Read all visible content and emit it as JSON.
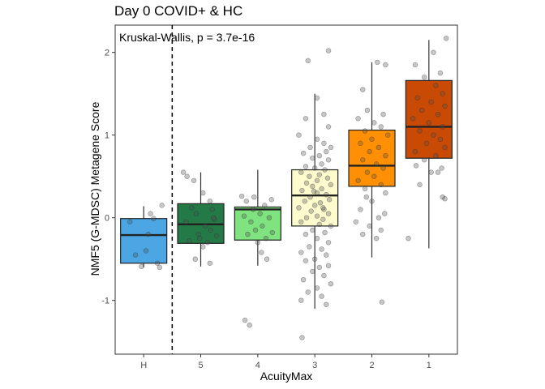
{
  "chart_data": {
    "type": "box",
    "title": "Day 0 COVID+ & HC",
    "xlabel": "AcuityMax",
    "ylabel": "NMF5 (G-MDSC) Metagene Score",
    "annotation": "Kruskal-Wallis, p = 3.7e-16",
    "categories": [
      "H",
      "5",
      "4",
      "3",
      "2",
      "1"
    ],
    "y_ticks": [
      -1,
      0,
      1,
      2
    ],
    "ylim": [
      -1.65,
      2.33
    ],
    "reference_line": {
      "type": "vertical",
      "style": "dashed",
      "between": [
        "H",
        "5"
      ]
    },
    "grid": false,
    "legend": "none",
    "boxes": [
      {
        "category": "H",
        "color": "#4BA6E3",
        "whisker_low": -0.6,
        "q1": -0.55,
        "median": -0.21,
        "q3": -0.01,
        "whisker_high": 0.14
      },
      {
        "category": "5",
        "color": "#237A47",
        "whisker_low": -0.59,
        "q1": -0.31,
        "median": -0.08,
        "q3": 0.17,
        "whisker_high": 0.55
      },
      {
        "category": "4",
        "color": "#7FE37F",
        "whisker_low": -0.58,
        "q1": -0.27,
        "median": 0.1,
        "q3": 0.13,
        "whisker_high": 0.58
      },
      {
        "category": "3",
        "color": "#FEFBCF",
        "whisker_low": -1.1,
        "q1": -0.1,
        "median": 0.27,
        "q3": 0.58,
        "whisker_high": 1.5
      },
      {
        "category": "2",
        "color": "#FF9005",
        "whisker_low": -0.48,
        "q1": 0.38,
        "median": 0.63,
        "q3": 1.06,
        "whisker_high": 1.88
      },
      {
        "category": "1",
        "color": "#C94A05",
        "whisker_low": -0.37,
        "q1": 0.72,
        "median": 1.1,
        "q3": 1.66,
        "whisker_high": 2.15
      }
    ],
    "points": {
      "H": [
        [
          0.22,
          -0.01
        ],
        [
          -0.18,
          -0.45
        ],
        [
          0.05,
          -0.4
        ],
        [
          0.35,
          -0.6
        ],
        [
          -0.05,
          -0.59
        ],
        [
          0.3,
          -0.55
        ],
        [
          0.15,
          0.05
        ],
        [
          -0.3,
          -0.05
        ],
        [
          0.1,
          -0.2
        ],
        [
          0.4,
          0.15
        ]
      ],
      "5": [
        [
          -0.38,
          0.55
        ],
        [
          -0.3,
          0.5
        ],
        [
          -0.15,
          0.45
        ],
        [
          0.05,
          0.3
        ],
        [
          0.2,
          0.2
        ],
        [
          -0.2,
          0.12
        ],
        [
          0.25,
          0.1
        ],
        [
          -0.1,
          0.05
        ],
        [
          0.3,
          -0.02
        ],
        [
          -0.32,
          -0.05
        ],
        [
          0.1,
          -0.1
        ],
        [
          0.22,
          -0.15
        ],
        [
          -0.05,
          -0.2
        ],
        [
          0.35,
          -0.22
        ],
        [
          -0.25,
          -0.28
        ],
        [
          0.15,
          -0.3
        ],
        [
          0.05,
          -0.35
        ],
        [
          -0.12,
          -0.5
        ],
        [
          0.2,
          -0.55
        ],
        [
          -0.02,
          -0.25
        ],
        [
          0.28,
          0.0
        ]
      ],
      "4": [
        [
          -0.35,
          0.26
        ],
        [
          -0.25,
          0.2
        ],
        [
          0.3,
          0.22
        ],
        [
          0.15,
          0.15
        ],
        [
          -0.1,
          0.1
        ],
        [
          0.05,
          0.05
        ],
        [
          -0.3,
          0.02
        ],
        [
          0.25,
          0.0
        ],
        [
          -0.15,
          -0.05
        ],
        [
          0.1,
          -0.1
        ],
        [
          -0.05,
          -0.15
        ],
        [
          0.32,
          -0.18
        ],
        [
          -0.22,
          -0.2
        ],
        [
          0.18,
          -0.25
        ],
        [
          0.0,
          -0.3
        ],
        [
          0.08,
          -0.42
        ],
        [
          -0.28,
          -1.24
        ],
        [
          -0.18,
          -1.3
        ],
        [
          0.2,
          -0.5
        ],
        [
          -0.08,
          0.25
        ]
      ],
      "3": [
        [
          -0.15,
          1.9
        ],
        [
          0.3,
          2.02
        ],
        [
          0.05,
          1.45
        ],
        [
          0.2,
          1.25
        ],
        [
          -0.2,
          1.2
        ],
        [
          0.3,
          1.1
        ],
        [
          -0.35,
          1.0
        ],
        [
          0.05,
          0.95
        ],
        [
          0.2,
          0.9
        ],
        [
          -0.1,
          0.85
        ],
        [
          0.35,
          0.85
        ],
        [
          0.25,
          0.8
        ],
        [
          -0.25,
          0.78
        ],
        [
          0.1,
          0.75
        ],
        [
          -0.05,
          0.72
        ],
        [
          0.3,
          0.7
        ],
        [
          0.15,
          0.65
        ],
        [
          -0.2,
          0.62
        ],
        [
          0.0,
          0.6
        ],
        [
          0.22,
          0.58
        ],
        [
          -0.3,
          0.55
        ],
        [
          0.1,
          0.52
        ],
        [
          -0.12,
          0.5
        ],
        [
          0.28,
          0.48
        ],
        [
          0.05,
          0.45
        ],
        [
          -0.18,
          0.42
        ],
        [
          0.35,
          0.4
        ],
        [
          -0.05,
          0.38
        ],
        [
          0.15,
          0.35
        ],
        [
          -0.28,
          0.33
        ],
        [
          0.05,
          0.3
        ],
        [
          0.25,
          0.28
        ],
        [
          -0.1,
          0.25
        ],
        [
          0.32,
          0.22
        ],
        [
          -0.22,
          0.2
        ],
        [
          0.12,
          0.18
        ],
        [
          0.0,
          0.15
        ],
        [
          -0.35,
          0.12
        ],
        [
          0.2,
          0.1
        ],
        [
          -0.08,
          0.08
        ],
        [
          0.3,
          0.05
        ],
        [
          0.05,
          0.02
        ],
        [
          -0.18,
          0.0
        ],
        [
          0.18,
          -0.02
        ],
        [
          -0.3,
          -0.05
        ],
        [
          0.1,
          -0.08
        ],
        [
          0.35,
          -0.1
        ],
        [
          -0.05,
          -0.15
        ],
        [
          0.22,
          -0.18
        ],
        [
          -0.2,
          -0.2
        ],
        [
          0.05,
          -0.25
        ],
        [
          0.3,
          -0.3
        ],
        [
          -0.12,
          -0.35
        ],
        [
          0.15,
          -0.38
        ],
        [
          -0.3,
          -0.42
        ],
        [
          0.25,
          -0.45
        ],
        [
          0.0,
          -0.5
        ],
        [
          -0.2,
          -0.52
        ],
        [
          0.3,
          -0.58
        ],
        [
          0.1,
          -0.6
        ],
        [
          -0.05,
          -0.65
        ],
        [
          0.2,
          -0.7
        ],
        [
          -0.25,
          -0.75
        ],
        [
          0.35,
          -0.8
        ],
        [
          0.05,
          -0.85
        ],
        [
          -0.15,
          -0.9
        ],
        [
          0.15,
          -0.95
        ],
        [
          -0.3,
          -1.0
        ],
        [
          0.25,
          -1.05
        ],
        [
          -0.28,
          -1.45
        ],
        [
          0.18,
          0.12
        ],
        [
          -0.02,
          0.32
        ]
      ],
      "2": [
        [
          -0.2,
          1.55
        ],
        [
          0.12,
          1.88
        ],
        [
          0.3,
          1.85
        ],
        [
          -0.1,
          1.3
        ],
        [
          0.25,
          1.25
        ],
        [
          -0.3,
          1.2
        ],
        [
          0.05,
          1.15
        ],
        [
          0.2,
          1.1
        ],
        [
          -0.15,
          1.05
        ],
        [
          0.35,
          1.0
        ],
        [
          0.0,
          0.95
        ],
        [
          -0.25,
          0.9
        ],
        [
          0.15,
          0.85
        ],
        [
          -0.05,
          0.8
        ],
        [
          0.3,
          0.75
        ],
        [
          -0.2,
          0.7
        ],
        [
          0.1,
          0.65
        ],
        [
          0.25,
          0.6
        ],
        [
          -0.1,
          0.55
        ],
        [
          0.05,
          0.5
        ],
        [
          -0.3,
          0.45
        ],
        [
          0.2,
          0.4
        ],
        [
          -0.15,
          0.35
        ],
        [
          0.3,
          0.3
        ],
        [
          0.0,
          0.2
        ],
        [
          -0.25,
          0.1
        ],
        [
          0.15,
          0.0
        ],
        [
          -0.35,
          -0.05
        ],
        [
          0.2,
          -0.15
        ],
        [
          -0.2,
          -0.2
        ],
        [
          0.1,
          -0.25
        ],
        [
          -0.05,
          -0.1
        ],
        [
          0.22,
          -1.02
        ],
        [
          0.28,
          0.05
        ],
        [
          -0.12,
          0.25
        ]
      ],
      "1": [
        [
          0.38,
          2.17
        ],
        [
          0.1,
          2.0
        ],
        [
          -0.3,
          1.85
        ],
        [
          0.25,
          1.75
        ],
        [
          -0.1,
          1.7
        ],
        [
          0.15,
          1.6
        ],
        [
          0.3,
          1.5
        ],
        [
          -0.25,
          1.45
        ],
        [
          0.05,
          1.4
        ],
        [
          0.35,
          1.35
        ],
        [
          -0.15,
          1.3
        ],
        [
          0.2,
          1.25
        ],
        [
          -0.35,
          1.2
        ],
        [
          0.0,
          1.15
        ],
        [
          0.3,
          1.1
        ],
        [
          -0.2,
          1.05
        ],
        [
          0.1,
          1.0
        ],
        [
          0.25,
          0.95
        ],
        [
          -0.05,
          0.9
        ],
        [
          0.35,
          0.85
        ],
        [
          -0.3,
          0.8
        ],
        [
          0.15,
          0.75
        ],
        [
          -0.1,
          0.7
        ],
        [
          0.28,
          0.6
        ],
        [
          0.05,
          0.55
        ],
        [
          -0.2,
          0.4
        ],
        [
          0.3,
          0.25
        ],
        [
          0.35,
          0.23
        ],
        [
          -0.45,
          -0.25
        ],
        [
          0.2,
          0.55
        ],
        [
          -0.28,
          0.63
        ]
      ]
    }
  }
}
